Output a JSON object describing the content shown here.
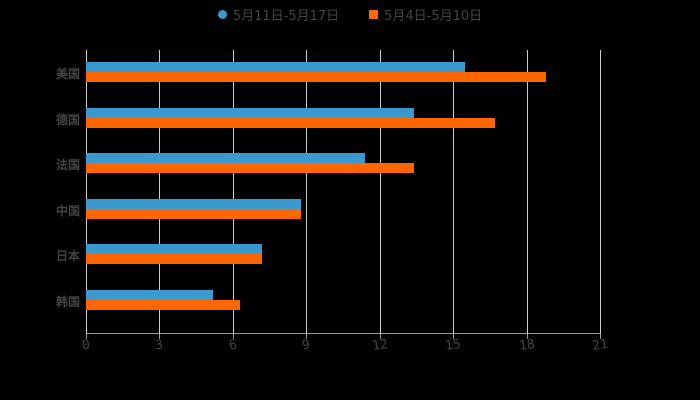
{
  "legend": [
    {
      "label": "5月11日-5月17日",
      "color": "#3a9ad0",
      "marker": "circle"
    },
    {
      "label": "5月4日-5月10日",
      "color": "#ff6600",
      "marker": "square"
    }
  ],
  "chart_data": {
    "type": "bar",
    "orientation": "horizontal",
    "categories": [
      "美国",
      "德国",
      "法国",
      "中国",
      "日本",
      "韩国"
    ],
    "series": [
      {
        "name": "5月11日-5月17日",
        "color": "#3a9ad0",
        "values": [
          15.5,
          13.4,
          11.4,
          8.8,
          7.2,
          5.2
        ]
      },
      {
        "name": "5月4日-5月10日",
        "color": "#ff6600",
        "values": [
          18.8,
          16.7,
          13.4,
          8.8,
          7.2,
          6.3
        ]
      }
    ],
    "title": "",
    "xlabel": "",
    "ylabel": "",
    "xlim": [
      0,
      21
    ],
    "xticks": [
      "0",
      "3",
      "6",
      "9",
      "12",
      "15",
      "18",
      "21"
    ],
    "grid": true,
    "legend_position": "top"
  }
}
